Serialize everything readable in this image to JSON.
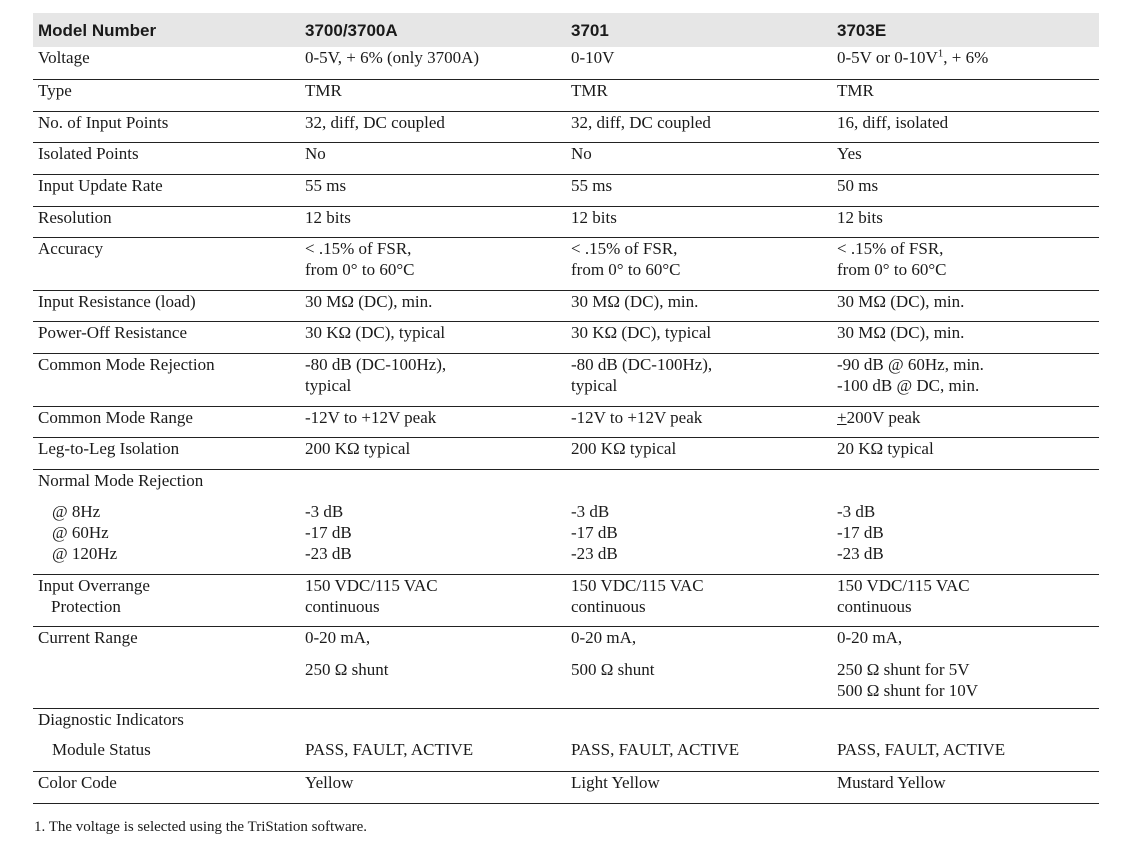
{
  "header": {
    "label": "Model Number",
    "models": [
      "3700/3700A",
      "3701",
      "3703E"
    ]
  },
  "rows": {
    "voltage": {
      "label": "Voltage",
      "m1": "0-5V, + 6% (only 3700A)",
      "m2": "0-10V",
      "m3a": "0-5V or 0-10V",
      "m3_sup": "1",
      "m3b": ", + 6%"
    },
    "type": {
      "label": "Type",
      "m1": "TMR",
      "m2": "TMR",
      "m3": "TMR"
    },
    "input_points": {
      "label": "No. of Input Points",
      "m1": "32, diff, DC coupled",
      "m2": "32, diff, DC coupled",
      "m3": "16, diff, isolated"
    },
    "isolated": {
      "label": "Isolated Points",
      "m1": "No",
      "m2": "No",
      "m3": "Yes"
    },
    "update_rate": {
      "label": "Input Update Rate",
      "m1": "55 ms",
      "m2": "55 ms",
      "m3": "50 ms"
    },
    "resolution": {
      "label": "Resolution",
      "m1": "12 bits",
      "m2": "12 bits",
      "m3": "12 bits"
    },
    "accuracy": {
      "label": "Accuracy",
      "m1": [
        "< .15% of FSR,",
        "from 0° to 60°C"
      ],
      "m2": [
        "< .15% of FSR,",
        "from 0° to 60°C"
      ],
      "m3": [
        "< .15% of FSR,",
        "from 0° to 60°C"
      ]
    },
    "input_resistance": {
      "label": "Input Resistance (load)",
      "m1": "30 MΩ (DC), min.",
      "m2": "30 MΩ (DC), min.",
      "m3": "30 MΩ (DC), min."
    },
    "power_off": {
      "label": "Power-Off Resistance",
      "m1": "30 KΩ (DC), typical",
      "m2": "30 KΩ (DC), typical",
      "m3": "30 MΩ (DC), min."
    },
    "cmr": {
      "label": "Common Mode Rejection",
      "m1": [
        "-80 dB (DC-100Hz),",
        "typical"
      ],
      "m2": [
        "-80 dB (DC-100Hz),",
        "typical"
      ],
      "m3": [
        "-90 dB @ 60Hz, min.",
        "-100 dB @ DC, min."
      ]
    },
    "cm_range": {
      "label": "Common Mode Range",
      "m1": "-12V to +12V peak",
      "m2": "-12V to +12V peak",
      "m3_pm": "+",
      "m3": "200V peak"
    },
    "leg_isolation": {
      "label": "Leg-to-Leg Isolation",
      "m1": "200 KΩ typical",
      "m2": "200 KΩ typical",
      "m3": "20 KΩ typical"
    },
    "nmr": {
      "label": "Normal Mode Rejection",
      "freqs": [
        "@ 8Hz",
        "@ 60Hz",
        "@ 120Hz"
      ],
      "m1": [
        "-3 dB",
        "-17 dB",
        "-23 dB"
      ],
      "m2": [
        "-3 dB",
        "-17 dB",
        "-23 dB"
      ],
      "m3": [
        "-3 dB",
        "-17 dB",
        "-23 dB"
      ]
    },
    "overrange": {
      "label": [
        "Input Overrange",
        "Protection"
      ],
      "m1": [
        "150 VDC/115 VAC",
        "continuous"
      ],
      "m2": [
        "150 VDC/115 VAC",
        "continuous"
      ],
      "m3": [
        "150 VDC/115 VAC",
        "continuous"
      ]
    },
    "current_range": {
      "label": "Current Range",
      "m1": [
        "0-20 mA,",
        "250 Ω shunt"
      ],
      "m2": [
        "0-20 mA,",
        "500 Ω shunt"
      ],
      "m3": [
        "0-20 mA,",
        "250 Ω shunt for 5V",
        "500 Ω shunt for 10V"
      ]
    },
    "diagnostic": {
      "label": "Diagnostic Indicators",
      "sub": "Module Status",
      "m1": "PASS, FAULT, ACTIVE",
      "m2": "PASS, FAULT, ACTIVE",
      "m3": "PASS, FAULT, ACTIVE"
    },
    "color_code": {
      "label": "Color Code",
      "m1": "Yellow",
      "m2": "Light Yellow",
      "m3": "Mustard Yellow"
    }
  },
  "footnote": "1. The voltage is selected using the TriStation software."
}
